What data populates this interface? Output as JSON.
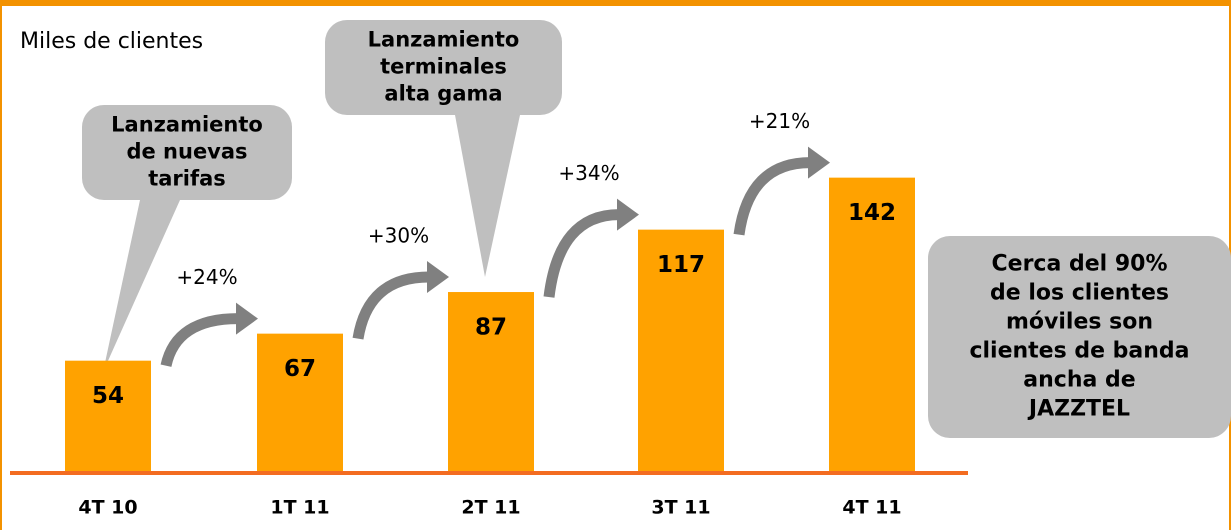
{
  "chart_data": {
    "type": "bar",
    "subtitle": "Miles de clientes",
    "categories": [
      "4T 10",
      "1T 11",
      "2T 11",
      "3T 11",
      "4T 11"
    ],
    "values": [
      54,
      67,
      87,
      117,
      142
    ],
    "color": "#ffa200",
    "ylim": [
      0,
      150
    ],
    "growth_labels": [
      "+24%",
      "+30%",
      "+34%",
      "+21%"
    ],
    "callouts": [
      {
        "lines": [
          "Lanzamiento",
          "de nuevas",
          "tarifas"
        ]
      },
      {
        "lines": [
          "Lanzamiento",
          "terminales",
          "alta gama"
        ]
      },
      {
        "lines": [
          "Cerca del 90%",
          "de los clientes",
          "móviles son",
          "clientes de banda",
          "ancha de",
          "JAZZTEL"
        ]
      }
    ]
  }
}
